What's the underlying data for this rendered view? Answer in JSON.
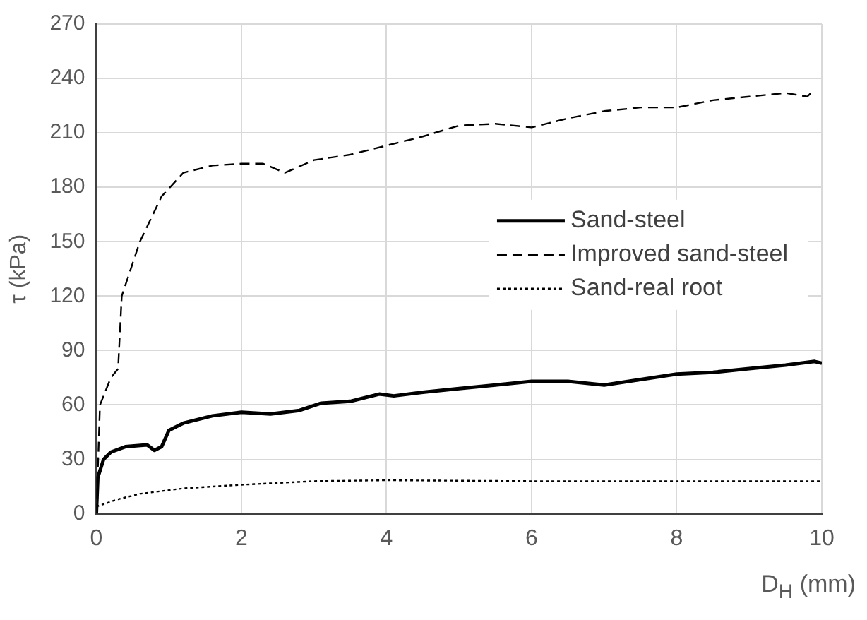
{
  "chart_data": {
    "type": "line",
    "xlabel": "D$_{H}$ (mm)",
    "ylabel": "τ (kPa)",
    "xlim": [
      0,
      10
    ],
    "xticks": [
      0,
      2,
      4,
      6,
      8,
      10
    ],
    "ylim": [
      0,
      270
    ],
    "yticks": [
      0,
      30,
      60,
      90,
      120,
      150,
      180,
      210,
      240,
      270
    ],
    "grid": true,
    "legend": "right",
    "marker": "none",
    "series": [
      {
        "name": "Sand-steel",
        "color": "#000000",
        "line_style": "solid",
        "x": [
          0,
          0.02,
          0.1,
          0.2,
          0.4,
          0.7,
          0.8,
          0.9,
          1.0,
          1.2,
          1.6,
          2,
          2.4,
          2.8,
          3.1,
          3.5,
          3.9,
          4.1,
          4.5,
          5,
          5.5,
          6,
          6.5,
          7,
          7.5,
          8,
          8.5,
          9,
          9.5,
          9.9,
          10
        ],
        "values": [
          0,
          20,
          30,
          34,
          37,
          38,
          35,
          37,
          46,
          50,
          54,
          56,
          55,
          57,
          61,
          62,
          66,
          65,
          67,
          69,
          71,
          73,
          73,
          71,
          74,
          77,
          78,
          80,
          82,
          84,
          83
        ]
      },
      {
        "name": "Improved sand-steel",
        "color": "#000000",
        "line_style": "dashed",
        "x": [
          0,
          0.05,
          0.2,
          0.3,
          0.35,
          0.6,
          0.9,
          1.2,
          1.6,
          2,
          2.3,
          2.6,
          3,
          3.5,
          4,
          4.5,
          5,
          5.5,
          6,
          6.5,
          7,
          7.5,
          8,
          8.5,
          9,
          9.5,
          9.8,
          9.9
        ],
        "values": [
          0,
          60,
          75,
          80,
          120,
          150,
          175,
          188,
          192,
          193,
          193,
          188,
          195,
          198,
          203,
          208,
          214,
          215,
          213,
          218,
          222,
          224,
          224,
          228,
          230,
          232,
          230,
          234
        ]
      },
      {
        "name": "Sand-real root",
        "color": "#000000",
        "line_style": "dotted",
        "x": [
          0,
          0.3,
          0.6,
          1.2,
          2,
          3,
          4,
          6,
          8,
          10
        ],
        "values": [
          4,
          8,
          11,
          14,
          16,
          18,
          18.5,
          18,
          18,
          18
        ]
      }
    ]
  }
}
